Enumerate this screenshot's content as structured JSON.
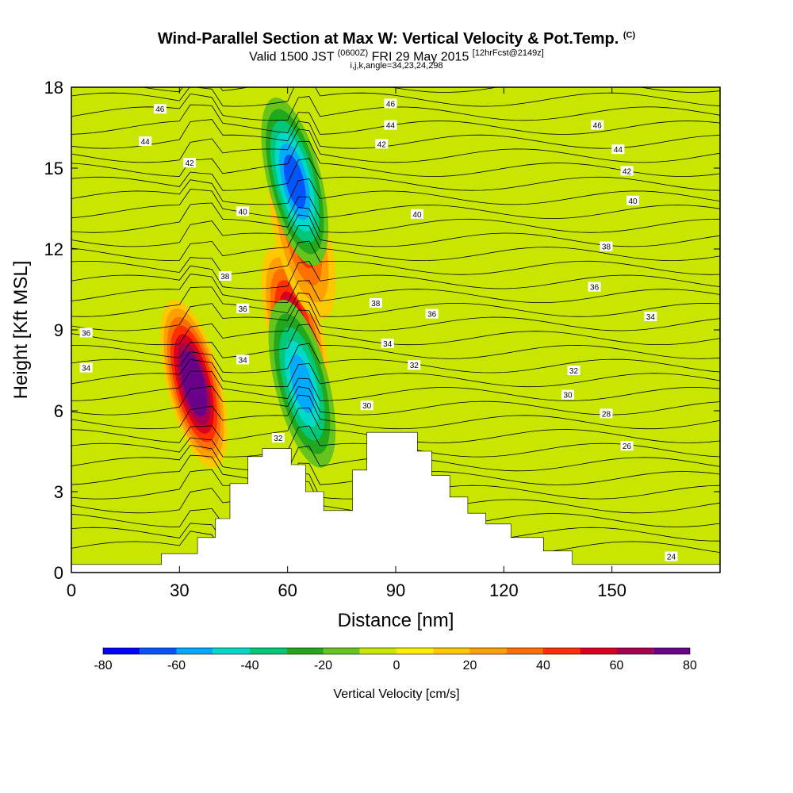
{
  "header": {
    "title": "Wind-Parallel Section at Max W: Vertical Velocity & Pot.Temp.",
    "title_tag": "(C)",
    "valid_prefix": "Valid 1500 JST",
    "valid_utc": "(0600Z)",
    "valid_date": "FRI 29 May 2015",
    "forecast": "[12hrFcst@2149z]",
    "params": "i,j,k,angle=34,23,24,298"
  },
  "chart_data": {
    "type": "heatmap",
    "xlabel": "Distance [nm]",
    "ylabel": "Height [Kft MSL]",
    "xlim": [
      0,
      180
    ],
    "ylim": [
      0,
      18
    ],
    "x_ticks": [
      0,
      30,
      60,
      90,
      120,
      150
    ],
    "y_ticks": [
      0,
      3,
      6,
      9,
      12,
      15,
      18
    ],
    "colorbar": {
      "label": "Vertical Velocity [cm/s]",
      "tick_labels": [
        "-80",
        "-60",
        "-40",
        "-20",
        "0",
        "20",
        "40",
        "60",
        "80"
      ],
      "levels": [
        -80,
        -70,
        -60,
        -50,
        -40,
        -30,
        -20,
        -10,
        0,
        10,
        20,
        30,
        40,
        50,
        60,
        70,
        80
      ],
      "colors": [
        "#0000ff",
        "#0055ff",
        "#00aaff",
        "#00d8c8",
        "#00c878",
        "#22a81c",
        "#66c41c",
        "#c8e600",
        "#ffec00",
        "#ffc800",
        "#ffa000",
        "#ff7000",
        "#ff3000",
        "#d8001e",
        "#a80050",
        "#6a008a"
      ]
    },
    "background_color": "#c8e600",
    "updrafts": [
      {
        "x": 34,
        "y": 7,
        "peak": 80
      },
      {
        "x": 62,
        "y": 9,
        "peak": 60
      },
      {
        "x": 64,
        "y": 12.5,
        "peak": 40
      }
    ],
    "downdrafts": [
      {
        "x": 62,
        "y": 14.5,
        "peak": -60
      },
      {
        "x": 64,
        "y": 7,
        "peak": -50
      }
    ],
    "terrain": [
      [
        0,
        0.3
      ],
      [
        25,
        0.3
      ],
      [
        25,
        0.7
      ],
      [
        35,
        0.7
      ],
      [
        35,
        1.3
      ],
      [
        40,
        1.3
      ],
      [
        40,
        2
      ],
      [
        44,
        2
      ],
      [
        44,
        3.3
      ],
      [
        49,
        3.3
      ],
      [
        49,
        4.3
      ],
      [
        53,
        4.3
      ],
      [
        53,
        4.6
      ],
      [
        61,
        4.6
      ],
      [
        61,
        4.0
      ],
      [
        65,
        4.0
      ],
      [
        65,
        3.0
      ],
      [
        70,
        3.0
      ],
      [
        70,
        2.3
      ],
      [
        78,
        2.3
      ],
      [
        78,
        3.8
      ],
      [
        82,
        3.8
      ],
      [
        82,
        5.2
      ],
      [
        96,
        5.2
      ],
      [
        96,
        4.5
      ],
      [
        100,
        4.5
      ],
      [
        100,
        3.6
      ],
      [
        105,
        3.6
      ],
      [
        105,
        2.8
      ],
      [
        110,
        2.8
      ],
      [
        110,
        2.2
      ],
      [
        115,
        2.2
      ],
      [
        115,
        1.8
      ],
      [
        122,
        1.8
      ],
      [
        122,
        1.3
      ],
      [
        131,
        1.3
      ],
      [
        131,
        0.8
      ],
      [
        139,
        0.8
      ],
      [
        139,
        0.3
      ],
      [
        180,
        0.3
      ]
    ],
    "contour_labels": [
      {
        "text": "46",
        "x": 30,
        "y": 17.2
      },
      {
        "text": "44",
        "x": 25,
        "y": 16.0
      },
      {
        "text": "42",
        "x": 40,
        "y": 15.2
      },
      {
        "text": "40",
        "x": 58,
        "y": 13.4
      },
      {
        "text": "38",
        "x": 52,
        "y": 11.0
      },
      {
        "text": "36",
        "x": 58,
        "y": 9.8
      },
      {
        "text": "34",
        "x": 58,
        "y": 7.9
      },
      {
        "text": "32",
        "x": 70,
        "y": 5.0
      },
      {
        "text": "36",
        "x": 5,
        "y": 8.9
      },
      {
        "text": "34",
        "x": 5,
        "y": 7.6
      },
      {
        "text": "46",
        "x": 108,
        "y": 17.4
      },
      {
        "text": "44",
        "x": 108,
        "y": 16.6
      },
      {
        "text": "42",
        "x": 105,
        "y": 15.9
      },
      {
        "text": "40",
        "x": 117,
        "y": 13.3
      },
      {
        "text": "38",
        "x": 103,
        "y": 10.0
      },
      {
        "text": "36",
        "x": 122,
        "y": 9.6
      },
      {
        "text": "34",
        "x": 107,
        "y": 8.5
      },
      {
        "text": "32",
        "x": 116,
        "y": 7.7
      },
      {
        "text": "30",
        "x": 100,
        "y": 6.2
      },
      {
        "text": "46",
        "x": 178,
        "y": 16.6
      },
      {
        "text": "44",
        "x": 185,
        "y": 15.7
      },
      {
        "text": "42",
        "x": 188,
        "y": 14.9
      },
      {
        "text": "40",
        "x": 190,
        "y": 13.8
      },
      {
        "text": "38",
        "x": 181,
        "y": 12.1
      },
      {
        "text": "36",
        "x": 177,
        "y": 10.6
      },
      {
        "text": "34",
        "x": 196,
        "y": 9.5
      },
      {
        "text": "32",
        "x": 170,
        "y": 7.5
      },
      {
        "text": "30",
        "x": 168,
        "y": 6.6
      },
      {
        "text": "28",
        "x": 181,
        "y": 5.9
      },
      {
        "text": "26",
        "x": 188,
        "y": 4.7
      },
      {
        "text": "24",
        "x": 203,
        "y": 0.6
      }
    ]
  }
}
